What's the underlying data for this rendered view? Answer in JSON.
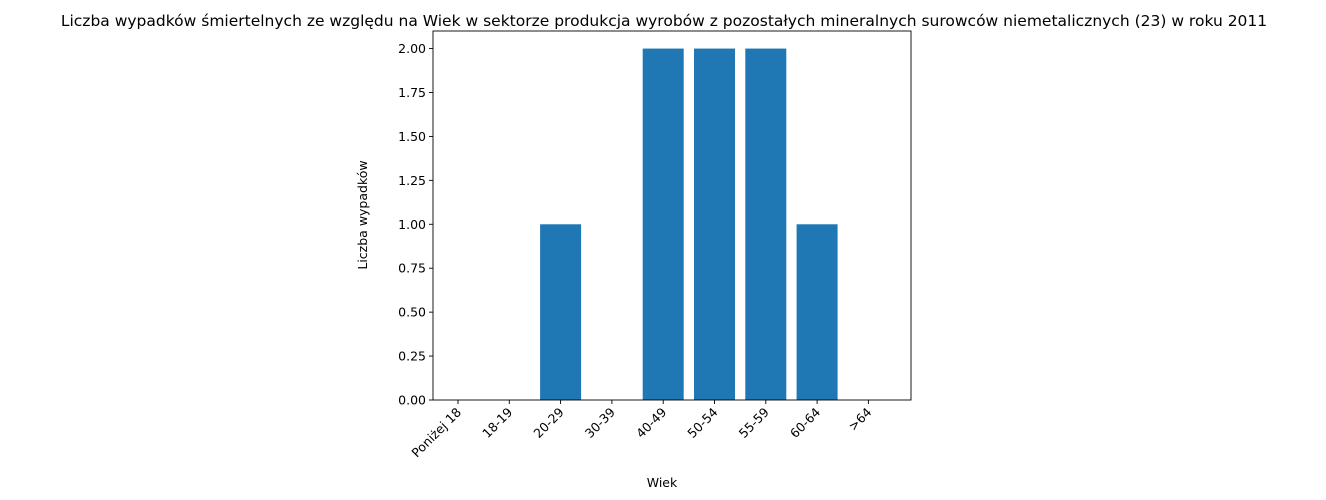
{
  "chart_data": {
    "type": "bar",
    "title": "Liczba wypadków śmiertelnych ze względu na Wiek w sektorze produkcja wyrobów z pozostałych mineralnych surowców niemetalicznych (23)  w roku 2011",
    "xlabel": "Wiek",
    "ylabel": "Liczba wypadków",
    "categories": [
      "Poniżej 18",
      "18-19",
      "20-29",
      "30-39",
      "40-49",
      "50-54",
      "55-59",
      "60-64",
      ">64"
    ],
    "values": [
      0,
      0,
      1,
      0,
      2,
      2,
      2,
      1,
      0
    ],
    "ylim": [
      0,
      2.1
    ],
    "yticks": [
      "0.00",
      "0.25",
      "0.50",
      "0.75",
      "1.00",
      "1.25",
      "1.50",
      "1.75",
      "2.00"
    ],
    "ytick_values": [
      0,
      0.25,
      0.5,
      0.75,
      1.0,
      1.25,
      1.5,
      1.75,
      2.0
    ],
    "bar_color": "#1f77b4",
    "grid": false,
    "legend": "none"
  }
}
